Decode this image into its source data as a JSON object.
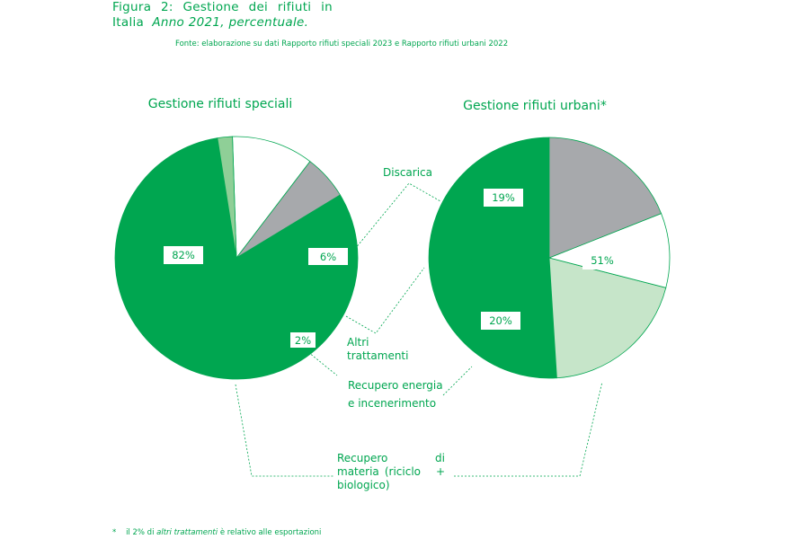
{
  "figure": {
    "title_prefix": [
      "Figura",
      "2:",
      "Gestione",
      "dei",
      "rifiuti",
      "in"
    ],
    "title_line2_plain": "Italia",
    "title_line2_italic": "Anno 2021, percentuale.",
    "source": "Fonte: elaborazione su dati Rapporto rifiuti speciali 2023 e Rapporto rifiuti urbani 2022",
    "footnote_marker": "*",
    "footnote_pre": "il 2% di",
    "footnote_italic": "altri trattamenti",
    "footnote_post": "è relativo alle esportazioni"
  },
  "colors": {
    "green": "#00a650",
    "gray": "#a7a9ac",
    "light_green": "#c6e5c9",
    "mid_green": "#8fcf97",
    "white": "#ffffff"
  },
  "chart_data": [
    {
      "type": "pie",
      "title": "Gestione rifiuti speciali",
      "slices": [
        {
          "category": "Recupero di materia (riciclo + biologico)",
          "value": 82,
          "label": "82%",
          "color": "#00a650"
        },
        {
          "category": "Discarica",
          "value": 6,
          "label": "6%",
          "color": "#a7a9ac"
        },
        {
          "category": "Altri trattamenti",
          "value": 11,
          "label": "11%",
          "color": "#ffffff"
        },
        {
          "category": "Recupero energia e incenerimento",
          "value": 2,
          "label": "2%",
          "color": "#8fcf97"
        }
      ]
    },
    {
      "type": "pie",
      "title": "Gestione rifiuti urbani*",
      "slices": [
        {
          "category": "Recupero di materia (riciclo + biologico)",
          "value": 51,
          "label": "51%",
          "color": "#00a650"
        },
        {
          "category": "Recupero energia e incenerimento",
          "value": 20,
          "label": "20%",
          "color": "#c6e5c9"
        },
        {
          "category": "Altri trattamenti",
          "value": 10,
          "label": "10%",
          "color": "#ffffff"
        },
        {
          "category": "Discarica",
          "value": 19,
          "label": "19%",
          "color": "#a7a9ac"
        }
      ]
    }
  ],
  "category_labels": {
    "discarica": [
      "Discarica"
    ],
    "altri": [
      "Altri",
      "trattamenti"
    ],
    "energia": [
      "Recupero energia",
      "e incenerimento"
    ],
    "materia": [
      "Recupero",
      "di",
      "materia",
      "(riciclo",
      "+",
      "biologico)"
    ]
  }
}
